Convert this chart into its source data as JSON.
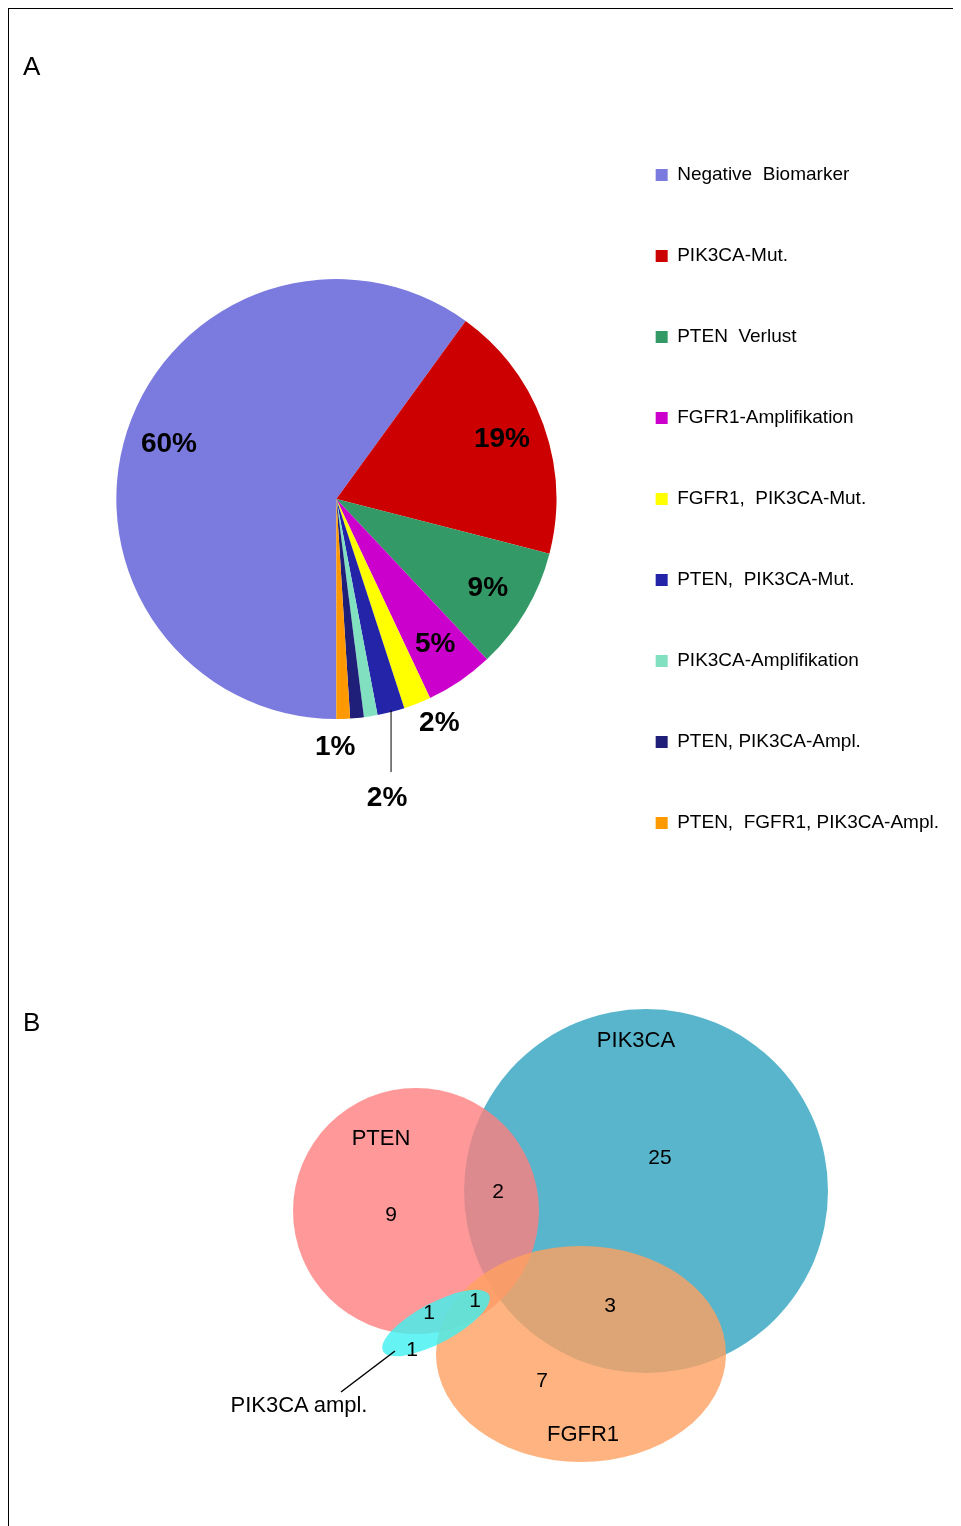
{
  "chart_data": [
    {
      "type": "pie",
      "title": "A",
      "categories": [
        "Negative  Biomarker",
        "PIK3CA-Mut.",
        "PTEN  Verlust",
        "FGFR1-Amplifikation",
        "FGFR1,  PIK3CA-Mut.",
        "PTEN,  PIK3CA-Mut.",
        "PIK3CA-Amplifikation",
        "PTEN, PIK3CA-Ampl.",
        "PTEN,  FGFR1, PIK3CA-Ampl."
      ],
      "values": [
        60,
        19,
        9,
        5,
        2,
        2,
        1,
        1,
        1
      ],
      "colors": [
        "#7b7bdf",
        "#cc0000",
        "#339966",
        "#cc00cc",
        "#ffff00",
        "#2424a8",
        "#80e0c0",
        "#1f1f7a",
        "#ff9900"
      ],
      "value_labels": [
        "60%",
        "19%",
        "9%",
        "5%",
        "2%",
        "2%",
        null,
        null,
        "1%"
      ],
      "legend": "right"
    },
    {
      "type": "other",
      "title": "B",
      "categories": [
        "PTEN",
        "PIK3CA",
        "FGFR1",
        "PIK3CA ampl."
      ],
      "colors": [
        "#ff7f7f",
        "#2ea3bf",
        "#ffa060",
        "#40f0f0"
      ],
      "annotations": [
        "9",
        "2",
        "25",
        "3",
        "7",
        "1",
        "1",
        "1"
      ]
    }
  ]
}
